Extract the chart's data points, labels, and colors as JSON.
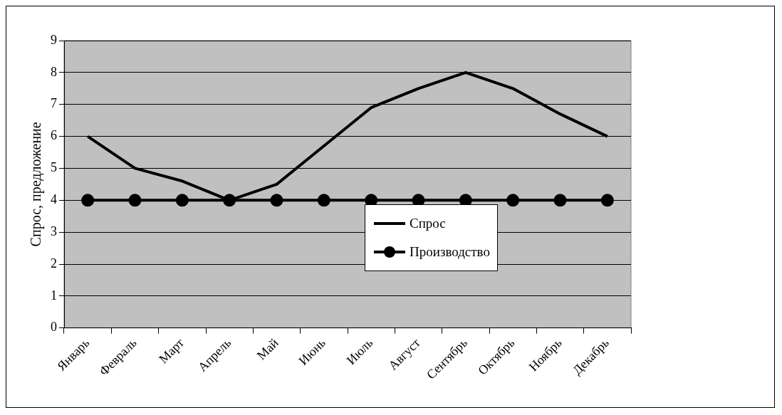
{
  "chart_data": {
    "type": "line",
    "ylabel": "Спрос, предложение",
    "categories": [
      "Январь",
      "Февраль",
      "Март",
      "Апрель",
      "Май",
      "Июнь",
      "Июль",
      "Август",
      "Сентябрь",
      "Октябрь",
      "Ноябрь",
      "Декабрь"
    ],
    "series": [
      {
        "name": "Спрос",
        "color": "#000000",
        "marker": "none",
        "values": [
          6,
          5,
          4.6,
          4,
          4.5,
          5.7,
          6.9,
          7.5,
          8,
          7.5,
          6.7,
          6
        ]
      },
      {
        "name": "Производство",
        "color": "#000000",
        "marker": "circle",
        "values": [
          4,
          4,
          4,
          4,
          4,
          4,
          4,
          4,
          4,
          4,
          4,
          4
        ]
      }
    ],
    "ylim": [
      0,
      9
    ],
    "yticks": [
      0,
      1,
      2,
      3,
      4,
      5,
      6,
      7,
      8,
      9
    ],
    "grid": "y",
    "legend": "bottom right",
    "line_style": "solid"
  }
}
